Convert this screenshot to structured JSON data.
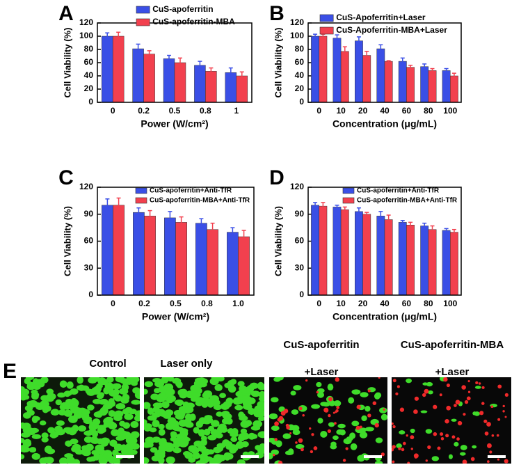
{
  "chart_data": [
    {
      "type": "bar",
      "panel_label": "A",
      "y_label": "Cell Viability (%)",
      "x_label": "Power (W/cm²)",
      "categories": [
        "0",
        "0.2",
        "0.5",
        "0.8",
        "1"
      ],
      "ylim": [
        0,
        120
      ],
      "yticks": [
        0,
        20,
        40,
        60,
        80,
        100,
        120
      ],
      "series": [
        {
          "name": "CuS-apoferritin",
          "color": "#3a4fe6",
          "values": [
            100,
            81,
            66,
            56,
            45
          ],
          "errors": [
            5,
            7,
            5,
            6,
            7
          ]
        },
        {
          "name": "CuS-apoferritin-MBA",
          "color": "#f2404e",
          "values": [
            100,
            73,
            60,
            47,
            40
          ],
          "errors": [
            6,
            5,
            7,
            5,
            6
          ]
        }
      ]
    },
    {
      "type": "bar",
      "panel_label": "B",
      "y_label": "Cell Viability (%)",
      "x_label": "Concentration (μg/mL)",
      "categories": [
        "0",
        "10",
        "20",
        "40",
        "60",
        "80",
        "100"
      ],
      "ylim": [
        0,
        120
      ],
      "yticks": [
        0,
        20,
        40,
        60,
        80,
        100,
        120
      ],
      "series": [
        {
          "name": "CuS-Apoferritin+Laser",
          "color": "#3a4fe6",
          "values": [
            100,
            97,
            93,
            81,
            62,
            54,
            48
          ],
          "errors": [
            3,
            5,
            6,
            6,
            5,
            4,
            3
          ]
        },
        {
          "name": "CuS-Apoferritin-MBA+Laser",
          "color": "#f2404e",
          "values": [
            100,
            77,
            71,
            62,
            53,
            48,
            40
          ],
          "errors": [
            3,
            7,
            6,
            1,
            3,
            3,
            4
          ]
        }
      ]
    },
    {
      "type": "bar",
      "panel_label": "C",
      "y_label": "Cell Viability (%)",
      "x_label": "Power (W/cm²)",
      "categories": [
        "0",
        "0.2",
        "0.5",
        "0.8",
        "1.0"
      ],
      "ylim": [
        0,
        120
      ],
      "yticks": [
        0,
        30,
        60,
        90,
        120
      ],
      "series": [
        {
          "name": "CuS-apoferritin+Anti-TfR",
          "color": "#3a4fe6",
          "values": [
            100,
            92,
            86,
            80,
            70
          ],
          "errors": [
            7,
            5,
            7,
            5,
            5
          ]
        },
        {
          "name": "CuS-apoferritin-MBA+Anti-TfR",
          "color": "#f2404e",
          "values": [
            100,
            88,
            81,
            73,
            65
          ],
          "errors": [
            8,
            6,
            6,
            7,
            7
          ]
        }
      ]
    },
    {
      "type": "bar",
      "panel_label": "D",
      "y_label": "Cell Viability (%)",
      "x_label": "Concentration (μg/mL)",
      "categories": [
        "0",
        "10",
        "20",
        "40",
        "60",
        "80",
        "100"
      ],
      "ylim": [
        0,
        120
      ],
      "yticks": [
        0,
        30,
        60,
        90,
        120
      ],
      "series": [
        {
          "name": "CuS-apoferritin+Anti-TfR",
          "color": "#3a4fe6",
          "values": [
            100,
            98,
            93,
            88,
            81,
            77,
            72
          ],
          "errors": [
            3,
            2,
            4,
            5,
            2,
            3,
            2
          ]
        },
        {
          "name": "CuS-apoferritin-MBA+Anti-TfR",
          "color": "#f2404e",
          "values": [
            99,
            95,
            90,
            84,
            78,
            73,
            70
          ],
          "errors": [
            4,
            3,
            2,
            5,
            3,
            4,
            3
          ]
        }
      ]
    }
  ],
  "panel_e": {
    "label": "E",
    "images": [
      {
        "title": [
          "Control"
        ]
      },
      {
        "title": [
          "Laser only"
        ]
      },
      {
        "title": [
          "CuS-apoferritin",
          "+Laser"
        ]
      },
      {
        "title": [
          "CuS-apoferritin-MBA",
          "+Laser"
        ]
      }
    ]
  }
}
